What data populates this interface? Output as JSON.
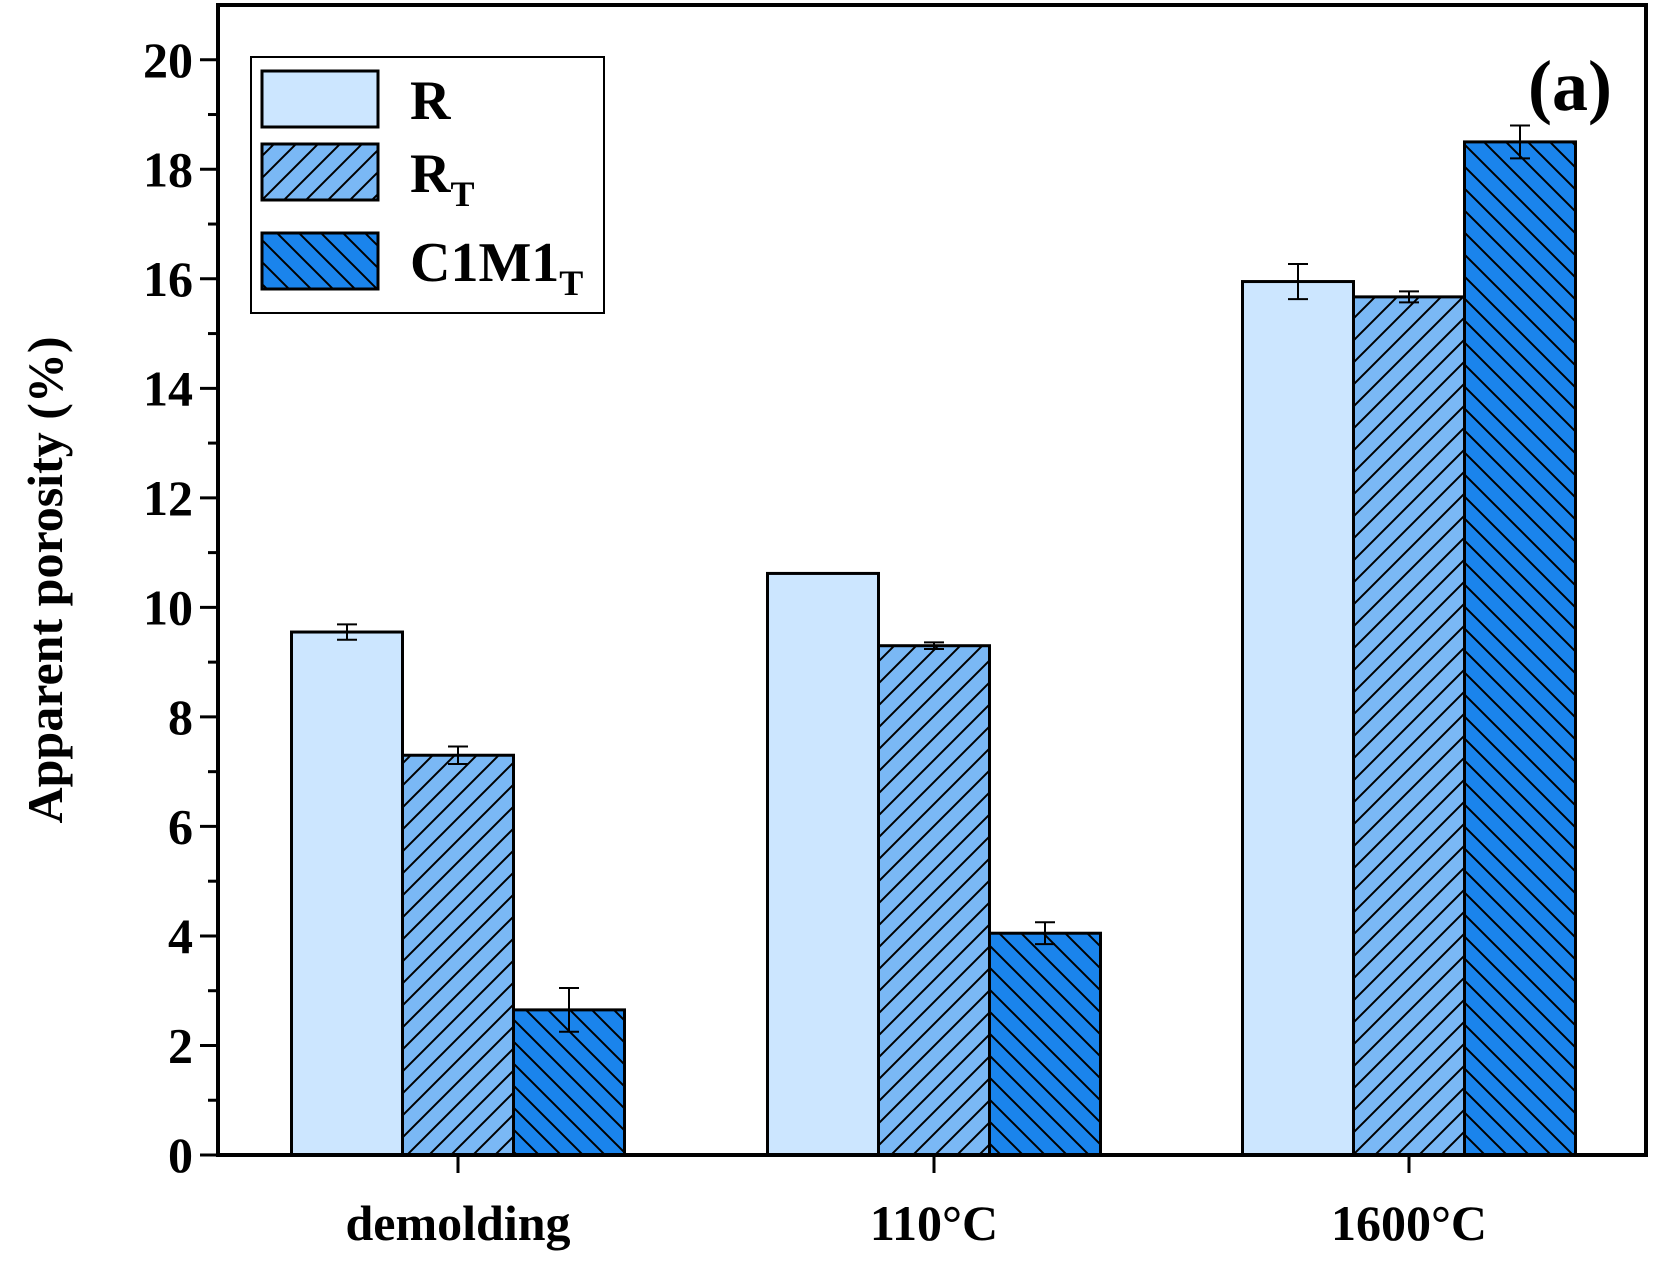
{
  "chart_data": {
    "type": "bar",
    "categories": [
      "demolding",
      "110°C",
      "1600°C"
    ],
    "series": [
      {
        "name": "R",
        "sub": "",
        "values": [
          9.55,
          10.62,
          15.95
        ],
        "errors": [
          0.14,
          0.0,
          0.32
        ],
        "color": "#cce6ff",
        "hatch": "none"
      },
      {
        "name": "R",
        "sub": "T",
        "values": [
          7.3,
          9.3,
          15.67
        ],
        "errors": [
          0.16,
          0.06,
          0.1
        ],
        "color": "#7ab8f5",
        "hatch": "forward"
      },
      {
        "name": "C1M1",
        "sub": "T",
        "values": [
          2.65,
          4.05,
          18.5
        ],
        "errors": [
          0.4,
          0.2,
          0.3
        ],
        "color": "#1a84ec",
        "hatch": "backward"
      }
    ],
    "ylabel": "Apparent porosity (%)",
    "xlabel": "",
    "ylim": [
      0,
      21
    ],
    "yticks": [
      0,
      2,
      4,
      6,
      8,
      10,
      12,
      14,
      16,
      18,
      20
    ],
    "legend_position": "top-left",
    "panel_label": "(a)",
    "grid": false
  }
}
